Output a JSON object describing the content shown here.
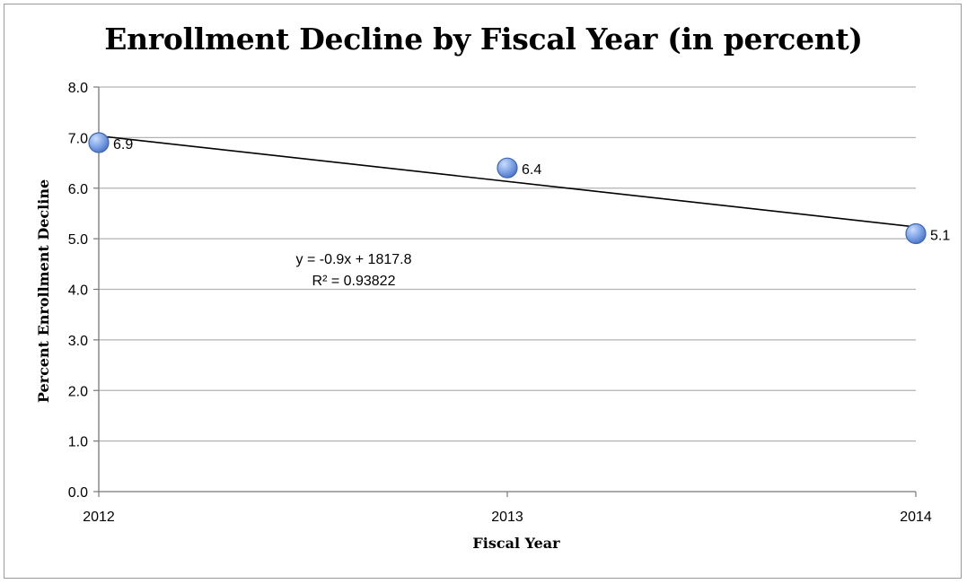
{
  "chart_data": {
    "type": "scatter",
    "title": "Enrollment Decline by Fiscal Year (in percent)",
    "xlabel": "Fiscal Year",
    "ylabel": "Percent Enrollment Decline",
    "x": [
      2012,
      2013,
      2014
    ],
    "x_tick_labels": [
      "2012",
      "2013",
      "2014"
    ],
    "xlim": [
      2012,
      2014
    ],
    "ylim": [
      0,
      8
    ],
    "y_ticks": [
      0,
      1,
      2,
      3,
      4,
      5,
      6,
      7,
      8
    ],
    "y_tick_labels": [
      "0.0",
      "1.0",
      "2.0",
      "3.0",
      "4.0",
      "5.0",
      "6.0",
      "7.0",
      "8.0"
    ],
    "series": [
      {
        "values": [
          6.9,
          6.4,
          5.1
        ],
        "data_labels": [
          "6.9",
          "6.4",
          "5.1"
        ],
        "color": "#6d95dc"
      }
    ],
    "trendline": {
      "slope": -0.9,
      "intercept": 1817.8,
      "equation": "y = -0.9x + 1817.8",
      "r2_label": "R² = 0.93822",
      "color": "#000000"
    },
    "grid": true,
    "legend": "none"
  }
}
